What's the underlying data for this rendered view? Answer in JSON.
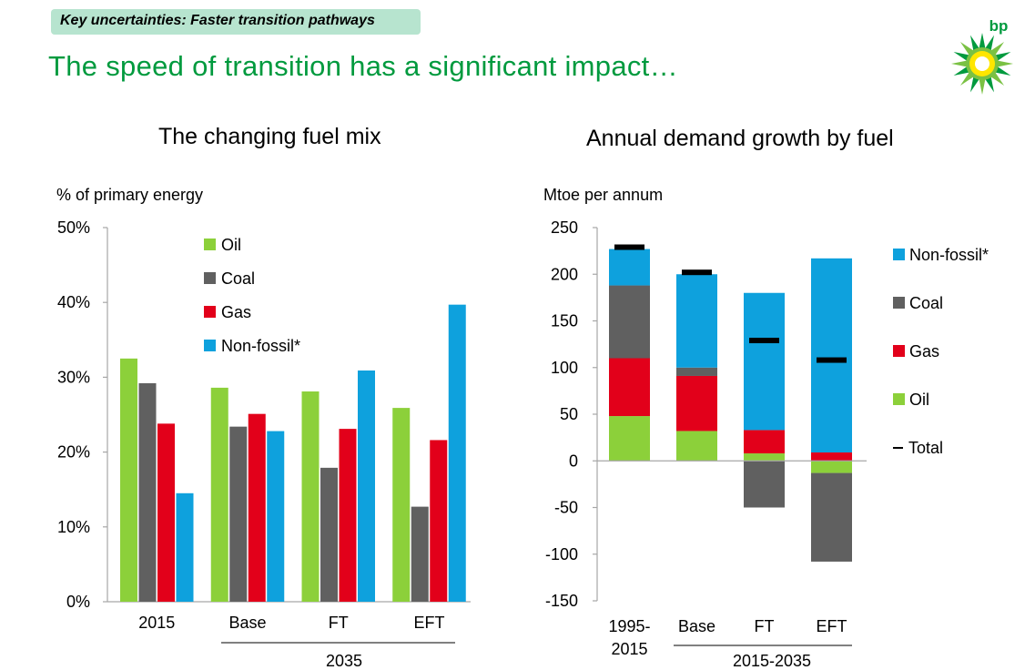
{
  "header": {
    "tag": "Key uncertainties: Faster transition pathways",
    "headline": "The speed of transition has a significant impact…",
    "logo_text": "bp"
  },
  "colors": {
    "oil": "#8cd03a",
    "coal": "#606060",
    "gas": "#e2001a",
    "nonfossil": "#0ea1dd",
    "total": "#000000",
    "axis": "#a6a6a6"
  },
  "chart_data": [
    {
      "type": "bar",
      "title": "The changing fuel mix",
      "ylabel": "% of primary energy",
      "ylim": [
        0,
        50
      ],
      "yticks": [
        0,
        10,
        20,
        30,
        40,
        50
      ],
      "ytick_labels": [
        "0%",
        "10%",
        "20%",
        "30%",
        "40%",
        "50%"
      ],
      "categories": [
        "2015",
        "Base",
        "FT",
        "EFT"
      ],
      "group_label": "2035",
      "legend": "top-left",
      "series": [
        {
          "name": "Oil",
          "key": "oil",
          "values": [
            32.5,
            28.6,
            28.1,
            25.9
          ]
        },
        {
          "name": "Coal",
          "key": "coal",
          "values": [
            29.2,
            23.4,
            17.9,
            12.7
          ]
        },
        {
          "name": "Gas",
          "key": "gas",
          "values": [
            23.8,
            25.1,
            23.1,
            21.6
          ]
        },
        {
          "name": "Non-fossil*",
          "key": "nonfossil",
          "values": [
            14.5,
            22.8,
            30.9,
            39.7
          ]
        }
      ]
    },
    {
      "type": "bar",
      "stacked": true,
      "title": "Annual demand growth by fuel",
      "ylabel": "Mtoe per annum",
      "ylim": [
        -150,
        250
      ],
      "yticks": [
        -150,
        -100,
        -50,
        0,
        50,
        100,
        150,
        200,
        250
      ],
      "ytick_labels": [
        "-150",
        "-100",
        "-50",
        "0",
        "50",
        "100",
        "150",
        "200",
        "250"
      ],
      "categories": [
        "1995-\n2015",
        "Base",
        "FT",
        "EFT"
      ],
      "group_label": "2015-2035",
      "legend": "right",
      "series": [
        {
          "name": "Oil",
          "key": "oil",
          "values": [
            48,
            32,
            8,
            -13
          ]
        },
        {
          "name": "Gas",
          "key": "gas",
          "values": [
            62,
            59,
            25,
            9
          ]
        },
        {
          "name": "Coal",
          "key": "coal",
          "values": [
            78,
            9,
            -50,
            -95
          ]
        },
        {
          "name": "Non-fossil*",
          "key": "nonfossil",
          "values": [
            39,
            100,
            147,
            208
          ]
        }
      ],
      "total": {
        "name": "Total",
        "values": [
          229,
          202,
          129,
          108
        ]
      },
      "legend_order": [
        "nonfossil",
        "coal",
        "gas",
        "oil",
        "total"
      ]
    }
  ]
}
